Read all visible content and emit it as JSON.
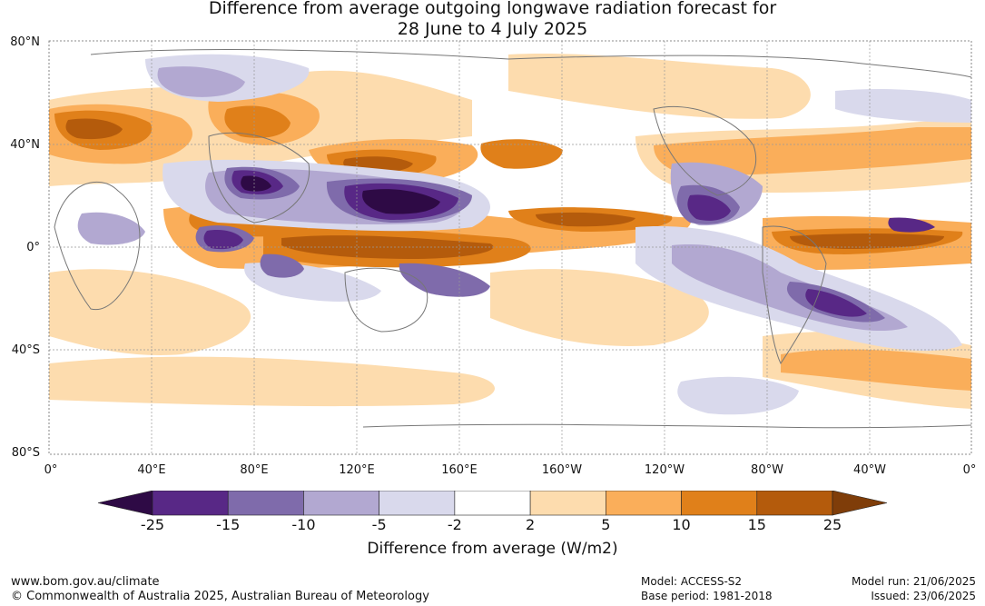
{
  "title": {
    "line1": "Difference from average outgoing longwave radiation forecast for",
    "line2": "28 June to 4 July 2025"
  },
  "map": {
    "lat_labels": [
      "80°N",
      "40°N",
      "0°",
      "40°S",
      "80°S"
    ],
    "lon_labels": [
      "0°",
      "40°E",
      "80°E",
      "120°E",
      "160°E",
      "160°W",
      "120°W",
      "80°W",
      "40°W",
      "0°"
    ]
  },
  "colorbar": {
    "label": "Difference from average (W/m2)",
    "ticks": [
      "-25",
      "-15",
      "-10",
      "-5",
      "-2",
      "2",
      "5",
      "10",
      "15",
      "25"
    ],
    "colors": [
      "#2e0a45",
      "#582886",
      "#7f6bab",
      "#b2a8d1",
      "#d9d9ec",
      "#ffffff",
      "#fddcae",
      "#faae5a",
      "#e0801a",
      "#b45b0c",
      "#7f3d09"
    ]
  },
  "footer": {
    "site": "www.bom.gov.au/climate",
    "copyright": "© Commonwealth of Australia 2025, Australian Bureau of Meteorology",
    "model": "Model: ACCESS-S2",
    "base_period": "Base period: 1981-2018",
    "model_run": "Model run: 21/06/2025",
    "issued": "Issued: 23/06/2025"
  }
}
